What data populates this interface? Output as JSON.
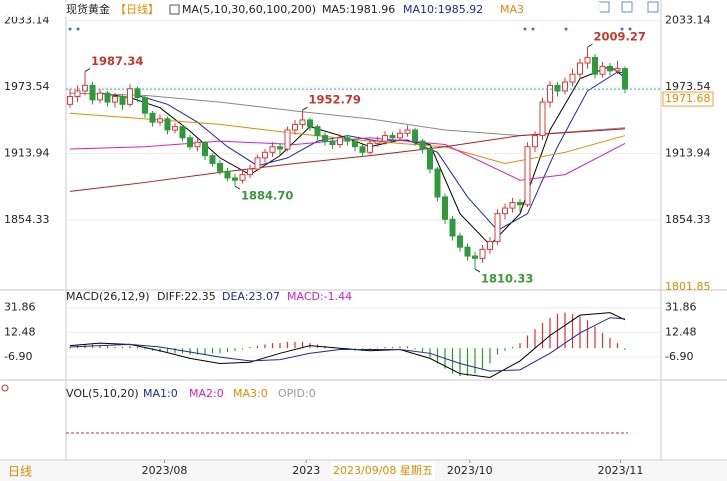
{
  "header": {
    "symbol": "现货黄金",
    "period": "【日线】",
    "ma_params": "MA(5,10,30,60,100,200)",
    "ma5": "MA5:1981.96",
    "ma10": "MA10:1985.92",
    "ma30": "MA3"
  },
  "chart_data": [
    {
      "type": "candlestick",
      "ylim": [
        1791.6,
        2051.5
      ],
      "yticks": [
        2033.14,
        1973.54,
        1913.94,
        1854.33
      ],
      "grid": true,
      "up_color": "#e0383a",
      "down_color": "#2f9a3a",
      "candles": [
        [
          1958,
          1972,
          1955,
          1965
        ],
        [
          1965,
          1975,
          1960,
          1970
        ],
        [
          1970,
          1987.34,
          1966,
          1975
        ],
        [
          1975,
          1978,
          1958,
          1962
        ],
        [
          1962,
          1972,
          1959,
          1968
        ],
        [
          1968,
          1970,
          1956,
          1960
        ],
        [
          1960,
          1968,
          1955,
          1965
        ],
        [
          1965,
          1967,
          1953,
          1958
        ],
        [
          1958,
          1976,
          1956,
          1972
        ],
        [
          1972,
          1974,
          1960,
          1964
        ],
        [
          1964,
          1966,
          1946,
          1950
        ],
        [
          1950,
          1952,
          1938,
          1942
        ],
        [
          1942,
          1949,
          1939,
          1945
        ],
        [
          1945,
          1947,
          1931,
          1935
        ],
        [
          1935,
          1941,
          1932,
          1938
        ],
        [
          1938,
          1940,
          1925,
          1928
        ],
        [
          1928,
          1931,
          1917,
          1920
        ],
        [
          1920,
          1927,
          1916,
          1924
        ],
        [
          1924,
          1925,
          1908,
          1912
        ],
        [
          1912,
          1914,
          1902,
          1905
        ],
        [
          1905,
          1908,
          1895,
          1898
        ],
        [
          1898,
          1901,
          1889,
          1892
        ],
        [
          1892,
          1896,
          1884.7,
          1890
        ],
        [
          1890,
          1899,
          1887,
          1895
        ],
        [
          1895,
          1904,
          1892,
          1900
        ],
        [
          1900,
          1913,
          1898,
          1910
        ],
        [
          1910,
          1918,
          1906,
          1915
        ],
        [
          1915,
          1924,
          1911,
          1920
        ],
        [
          1920,
          1923,
          1912,
          1918
        ],
        [
          1918,
          1938,
          1916,
          1935
        ],
        [
          1935,
          1944,
          1931,
          1940
        ],
        [
          1940,
          1952.79,
          1936,
          1944
        ],
        [
          1944,
          1946,
          1934,
          1938
        ],
        [
          1938,
          1940,
          1926,
          1930
        ],
        [
          1930,
          1933,
          1921,
          1925
        ],
        [
          1925,
          1927,
          1918,
          1922
        ],
        [
          1922,
          1931,
          1919,
          1928
        ],
        [
          1928,
          1930,
          1921,
          1925
        ],
        [
          1925,
          1927,
          1916,
          1920
        ],
        [
          1920,
          1922,
          1911,
          1915
        ],
        [
          1915,
          1926,
          1913,
          1923
        ],
        [
          1923,
          1929,
          1920,
          1925
        ],
        [
          1925,
          1934,
          1922,
          1930
        ],
        [
          1930,
          1933,
          1924,
          1928
        ],
        [
          1928,
          1936,
          1925,
          1932
        ],
        [
          1932,
          1939,
          1929,
          1935
        ],
        [
          1935,
          1937,
          1921,
          1925
        ],
        [
          1925,
          1927,
          1914,
          1918
        ],
        [
          1918,
          1920,
          1896,
          1900
        ],
        [
          1900,
          1902,
          1871,
          1875
        ],
        [
          1875,
          1878,
          1851,
          1855
        ],
        [
          1855,
          1858,
          1836,
          1840
        ],
        [
          1840,
          1843,
          1826,
          1830
        ],
        [
          1830,
          1833,
          1818,
          1822
        ],
        [
          1822,
          1826,
          1810.33,
          1820
        ],
        [
          1820,
          1832,
          1816,
          1828
        ],
        [
          1828,
          1839,
          1824,
          1835
        ],
        [
          1835,
          1864,
          1832,
          1860
        ],
        [
          1860,
          1869,
          1855,
          1865
        ],
        [
          1865,
          1874,
          1861,
          1870
        ],
        [
          1870,
          1873,
          1862,
          1868
        ],
        [
          1868,
          1924,
          1866,
          1920
        ],
        [
          1920,
          1934,
          1915,
          1930
        ],
        [
          1930,
          1964,
          1926,
          1960
        ],
        [
          1960,
          1979,
          1955,
          1975
        ],
        [
          1975,
          1978,
          1965,
          1970
        ],
        [
          1970,
          1982,
          1967,
          1978
        ],
        [
          1978,
          1990,
          1974,
          1985
        ],
        [
          1985,
          1999,
          1981,
          1995
        ],
        [
          1995,
          2009.27,
          1990,
          2000
        ],
        [
          2000,
          2003,
          1981,
          1985
        ],
        [
          1985,
          1996,
          1982,
          1992
        ],
        [
          1992,
          1995,
          1984,
          1988
        ],
        [
          1988,
          1997,
          1985,
          1990
        ],
        [
          1990,
          1992,
          1968,
          1971.68
        ]
      ],
      "lines": [
        {
          "color": "#000000",
          "x": [
            4,
            8,
            12,
            16,
            20,
            24,
            28,
            32,
            36,
            40,
            44,
            48,
            52,
            56,
            60,
            64,
            68,
            72,
            74
          ],
          "values": [
            1968,
            1964,
            1955,
            1934,
            1910,
            1895,
            1912,
            1938,
            1930,
            1920,
            1926,
            1922,
            1860,
            1832,
            1860,
            1935,
            1981,
            1992,
            1981.96
          ]
        },
        {
          "color": "#1a2a9a",
          "x": [
            9,
            13,
            17,
            21,
            25,
            29,
            33,
            37,
            41,
            45,
            49,
            53,
            57,
            61,
            65,
            69,
            73,
            74
          ],
          "values": [
            1966,
            1958,
            1942,
            1920,
            1903,
            1910,
            1925,
            1930,
            1925,
            1926,
            1915,
            1875,
            1845,
            1860,
            1920,
            1970,
            1987,
            1985.92
          ]
        },
        {
          "color": "#e08a00",
          "x": [
            0,
            10,
            20,
            30,
            40,
            50,
            58,
            66,
            74
          ],
          "values": [
            1950,
            1945,
            1940,
            1932,
            1925,
            1920,
            1905,
            1915,
            1930
          ]
        },
        {
          "color": "#d020d0",
          "x": [
            0,
            10,
            20,
            30,
            40,
            50,
            60,
            66,
            74
          ],
          "values": [
            1918,
            1920,
            1925,
            1922,
            1928,
            1922,
            1890,
            1895,
            1923
          ]
        },
        {
          "color": "#888888",
          "x": [
            0,
            10,
            20,
            30,
            40,
            50,
            60,
            74
          ],
          "values": [
            1968,
            1966,
            1960,
            1952,
            1945,
            1935,
            1930,
            1937
          ]
        },
        {
          "color": "#b02020",
          "x": [
            0,
            10,
            20,
            30,
            40,
            50,
            60,
            74
          ],
          "values": [
            1880,
            1888,
            1897,
            1905,
            1912,
            1920,
            1930,
            1936
          ]
        }
      ],
      "extremes": [
        {
          "value": 1987.34,
          "label": "1987.34"
        },
        {
          "value": 1884.7,
          "label": "1884.70"
        },
        {
          "value": 1952.79,
          "label": "1952.79"
        },
        {
          "value": 1810.33,
          "label": "1810.33"
        },
        {
          "value": 2009.27,
          "label": "2009.27"
        }
      ],
      "last_price": 1971.68,
      "scale_low": 1801.85,
      "xticks": [
        {
          "value": 12.6,
          "label": "2023/08"
        },
        {
          "value": 31.5,
          "label": "2023"
        },
        {
          "value": 53.3,
          "label": "2023/10"
        },
        {
          "value": 73.4,
          "label": "2023/11"
        }
      ]
    },
    {
      "type": "macd",
      "params": "MACD(26,12,9)",
      "diff_label": "DIFF:22.35",
      "dea_label": "DEA:23.07",
      "macd_label": "MACD:-1.44",
      "ylim": [
        -25,
        45.8
      ],
      "yticks": [
        31.86,
        12.48,
        {
          "value": -6.9,
          "label": "-6.90"
        }
      ],
      "grid": true,
      "histogram": [
        1,
        2,
        3,
        3,
        2,
        2,
        1,
        1,
        2,
        1,
        -1,
        -2,
        -3,
        -3,
        -4,
        -4,
        -5,
        -5,
        -5,
        -4,
        -4,
        -3,
        -2,
        -1,
        1,
        2,
        3,
        4,
        4,
        5,
        5,
        5,
        4,
        3,
        2,
        1,
        -1,
        -1,
        -2,
        -2,
        -1,
        0.5,
        1,
        1,
        1.5,
        1.5,
        -1,
        -3,
        -7,
        -12,
        -16,
        -20,
        -22,
        -22,
        -20,
        -16,
        -12,
        -5,
        -2,
        1,
        4,
        10,
        15,
        20,
        24,
        27,
        28,
        27,
        25,
        22,
        17,
        12,
        8,
        4,
        -1.44
      ],
      "series": [
        {
          "color": "#000000",
          "x": [
            0,
            4,
            8,
            12,
            16,
            20,
            24,
            28,
            32,
            36,
            40,
            44,
            48,
            52,
            56,
            60,
            64,
            68,
            72,
            74
          ],
          "values": [
            2,
            4,
            3,
            -2,
            -8,
            -12,
            -11,
            -4,
            2,
            0,
            -2,
            -1,
            -8,
            -20,
            -23,
            -10,
            10,
            26,
            28,
            22.35
          ]
        },
        {
          "color": "#1a2a9a",
          "x": [
            0,
            4,
            8,
            12,
            16,
            20,
            24,
            28,
            32,
            36,
            40,
            44,
            48,
            52,
            56,
            60,
            64,
            68,
            72,
            74
          ],
          "values": [
            1,
            2,
            3,
            1,
            -3,
            -7,
            -10,
            -9,
            -4,
            -1,
            -1,
            -1,
            -4,
            -12,
            -18,
            -17,
            -4,
            12,
            24,
            23.07
          ]
        }
      ]
    },
    {
      "type": "volume",
      "params": "VOL(5,10,20)",
      "ma1": "MA1:0",
      "ma2": "MA2:0",
      "ma3": "MA3:0",
      "opid": "OPID:0"
    }
  ],
  "footer": {
    "tooltip": "2023/09/08 星期五",
    "period": "日线"
  }
}
